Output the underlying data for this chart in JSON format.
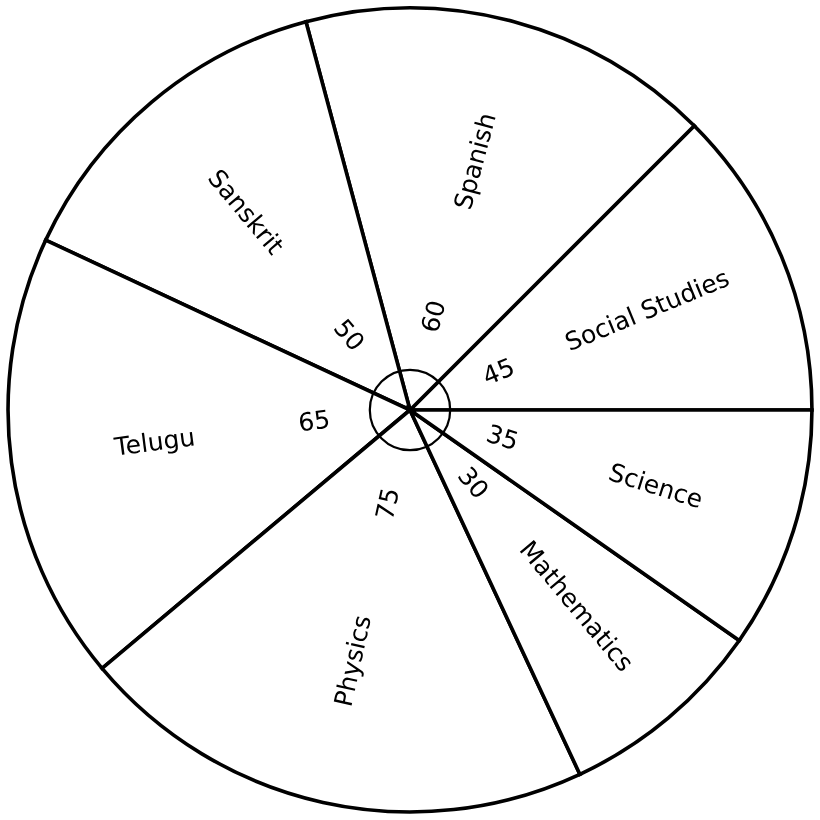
{
  "chart_data": {
    "type": "pie",
    "categories": [
      "Social Studies",
      "Spanish",
      "Sanskrit",
      "Telugu",
      "Physics",
      "Mathematics",
      "Science"
    ],
    "values": [
      45,
      60,
      50,
      65,
      75,
      30,
      35
    ],
    "colors": [
      "#ffffff",
      "#ffffff",
      "#ffffff",
      "#ffffff",
      "#ffffff",
      "#ffffff",
      "#ffffff"
    ],
    "data_labels": true
  }
}
